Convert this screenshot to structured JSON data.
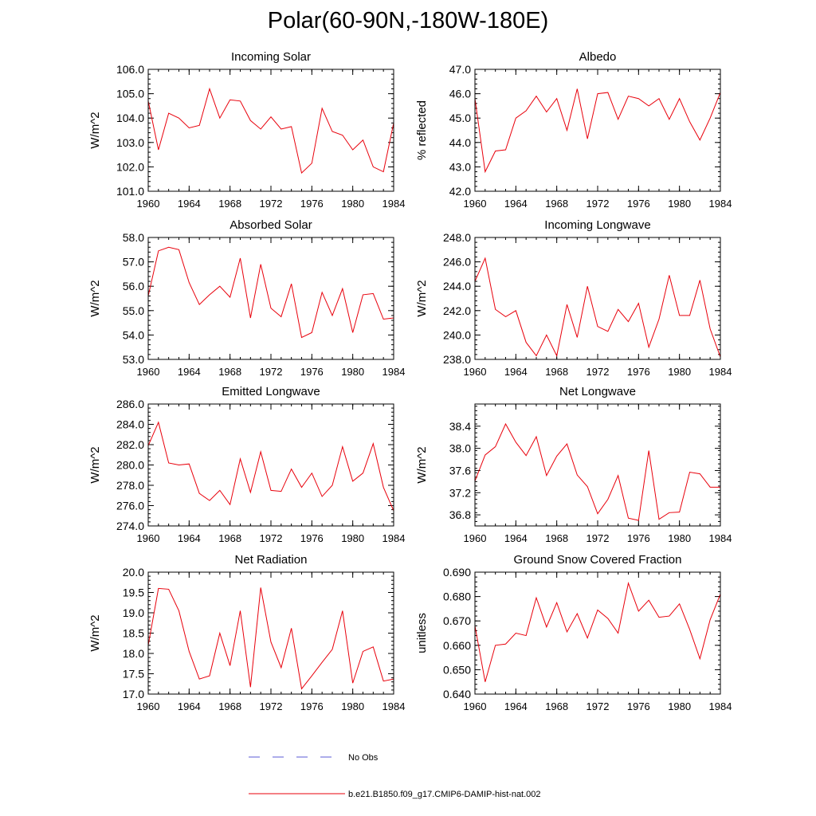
{
  "page": {
    "title": "Polar(60-90N,-180W-180E)"
  },
  "legend": {
    "entries": [
      {
        "label": "No Obs",
        "color": "#5b5bd6",
        "style": "dashed"
      },
      {
        "label": "b.e21.B1850.f09_g17.CMIP6-DAMIP-hist-nat.002",
        "color": "#e8000b",
        "style": "solid"
      }
    ]
  },
  "chart_data": [
    {
      "type": "line",
      "title": "Incoming Solar",
      "ylabel": "W/m^2",
      "xlim": [
        1960,
        1984
      ],
      "ylim": [
        101.0,
        106.0
      ],
      "xticks": [
        "1960",
        "1964",
        "1968",
        "1972",
        "1976",
        "1980",
        "1984"
      ],
      "yticks": [
        "101.0",
        "102.0",
        "103.0",
        "104.0",
        "105.0",
        "106.0"
      ],
      "series": [
        {
          "name": "b.e21.B1850.f09_g17.CMIP6-DAMIP-hist-nat.002",
          "color": "#e8000b",
          "x": [
            1960,
            1961,
            1962,
            1963,
            1964,
            1965,
            1966,
            1967,
            1968,
            1969,
            1970,
            1971,
            1972,
            1973,
            1974,
            1975,
            1976,
            1977,
            1978,
            1979,
            1980,
            1981,
            1982,
            1983,
            1984
          ],
          "y": [
            104.7,
            102.7,
            104.2,
            104.0,
            103.6,
            103.7,
            105.2,
            104.0,
            104.75,
            104.7,
            103.9,
            103.55,
            104.05,
            103.55,
            103.65,
            101.75,
            102.15,
            104.4,
            103.45,
            103.3,
            102.7,
            103.1,
            102.0,
            101.8,
            103.8
          ]
        }
      ]
    },
    {
      "type": "line",
      "title": "Albedo",
      "ylabel": "% reflected",
      "xlim": [
        1960,
        1984
      ],
      "ylim": [
        42.0,
        47.0
      ],
      "xticks": [
        "1960",
        "1964",
        "1968",
        "1972",
        "1976",
        "1980",
        "1984"
      ],
      "yticks": [
        "42.0",
        "43.0",
        "44.0",
        "45.0",
        "46.0",
        "47.0"
      ],
      "series": [
        {
          "name": "b.e21.B1850.f09_g17.CMIP6-DAMIP-hist-nat.002",
          "color": "#e8000b",
          "x": [
            1960,
            1961,
            1962,
            1963,
            1964,
            1965,
            1966,
            1967,
            1968,
            1969,
            1970,
            1971,
            1972,
            1973,
            1974,
            1975,
            1976,
            1977,
            1978,
            1979,
            1980,
            1981,
            1982,
            1983,
            1984
          ],
          "y": [
            45.8,
            42.8,
            43.65,
            43.7,
            45.0,
            45.3,
            45.9,
            45.25,
            45.8,
            44.5,
            46.2,
            44.15,
            46.0,
            46.05,
            44.95,
            45.9,
            45.8,
            45.5,
            45.8,
            44.95,
            45.8,
            44.85,
            44.1,
            45.0,
            46.05
          ]
        }
      ]
    },
    {
      "type": "line",
      "title": "Absorbed Solar",
      "ylabel": "W/m^2",
      "xlim": [
        1960,
        1984
      ],
      "ylim": [
        53.0,
        58.0
      ],
      "xticks": [
        "1960",
        "1964",
        "1968",
        "1972",
        "1976",
        "1980",
        "1984"
      ],
      "yticks": [
        "53.0",
        "54.0",
        "55.0",
        "56.0",
        "57.0",
        "58.0"
      ],
      "series": [
        {
          "name": "b.e21.B1850.f09_g17.CMIP6-DAMIP-hist-nat.002",
          "color": "#e8000b",
          "x": [
            1960,
            1961,
            1962,
            1963,
            1964,
            1965,
            1966,
            1967,
            1968,
            1969,
            1970,
            1971,
            1972,
            1973,
            1974,
            1975,
            1976,
            1977,
            1978,
            1979,
            1980,
            1981,
            1982,
            1983,
            1984
          ],
          "y": [
            55.6,
            57.45,
            57.6,
            57.5,
            56.15,
            55.25,
            55.65,
            56.0,
            55.55,
            57.15,
            54.7,
            56.9,
            55.1,
            54.75,
            56.1,
            53.9,
            54.1,
            55.75,
            54.8,
            55.9,
            54.1,
            55.65,
            55.7,
            54.65,
            54.7
          ]
        }
      ]
    },
    {
      "type": "line",
      "title": "Incoming Longwave",
      "ylabel": "W/m^2",
      "xlim": [
        1960,
        1984
      ],
      "ylim": [
        238.0,
        248.0
      ],
      "xticks": [
        "1960",
        "1964",
        "1968",
        "1972",
        "1976",
        "1980",
        "1984"
      ],
      "yticks": [
        "238.0",
        "240.0",
        "242.0",
        "244.0",
        "246.0",
        "248.0"
      ],
      "series": [
        {
          "name": "b.e21.B1850.f09_g17.CMIP6-DAMIP-hist-nat.002",
          "color": "#e8000b",
          "x": [
            1960,
            1961,
            1962,
            1963,
            1964,
            1965,
            1966,
            1967,
            1968,
            1969,
            1970,
            1971,
            1972,
            1973,
            1974,
            1975,
            1976,
            1977,
            1978,
            1979,
            1980,
            1981,
            1982,
            1983,
            1984
          ],
          "y": [
            244.4,
            246.3,
            242.1,
            241.5,
            242.0,
            239.4,
            238.3,
            240.0,
            238.3,
            242.5,
            239.8,
            244.0,
            240.7,
            240.3,
            242.1,
            241.1,
            242.6,
            239.0,
            241.3,
            244.9,
            241.6,
            241.6,
            244.5,
            240.5,
            238.2
          ]
        }
      ]
    },
    {
      "type": "line",
      "title": "Emitted Longwave",
      "ylabel": "W/m^2",
      "xlim": [
        1960,
        1984
      ],
      "ylim": [
        274.0,
        286.0
      ],
      "xticks": [
        "1960",
        "1964",
        "1968",
        "1972",
        "1976",
        "1980",
        "1984"
      ],
      "yticks": [
        "274.0",
        "276.0",
        "278.0",
        "280.0",
        "282.0",
        "284.0",
        "286.0"
      ],
      "series": [
        {
          "name": "b.e21.B1850.f09_g17.CMIP6-DAMIP-hist-nat.002",
          "color": "#e8000b",
          "x": [
            1960,
            1961,
            1962,
            1963,
            1964,
            1965,
            1966,
            1967,
            1968,
            1969,
            1970,
            1971,
            1972,
            1973,
            1974,
            1975,
            1976,
            1977,
            1978,
            1979,
            1980,
            1981,
            1982,
            1983,
            1984
          ],
          "y": [
            281.9,
            284.2,
            280.2,
            280.0,
            280.1,
            277.2,
            276.5,
            277.5,
            276.1,
            280.6,
            277.3,
            281.3,
            277.5,
            277.4,
            279.6,
            277.8,
            279.2,
            276.9,
            278.0,
            281.8,
            278.4,
            279.2,
            282.1,
            277.8,
            275.5
          ]
        }
      ]
    },
    {
      "type": "line",
      "title": "Net Longwave",
      "ylabel": "W/m^2",
      "xlim": [
        1960,
        1984
      ],
      "ylim": [
        36.6,
        38.8
      ],
      "xticks": [
        "1960",
        "1964",
        "1968",
        "1972",
        "1976",
        "1980",
        "1984"
      ],
      "yticks": [
        "36.8",
        "37.2",
        "37.6",
        "38.0",
        "38.4"
      ],
      "series": [
        {
          "name": "b.e21.B1850.f09_g17.CMIP6-DAMIP-hist-nat.002",
          "color": "#e8000b",
          "x": [
            1960,
            1961,
            1962,
            1963,
            1964,
            1965,
            1966,
            1967,
            1968,
            1969,
            1970,
            1971,
            1972,
            1973,
            1974,
            1975,
            1976,
            1977,
            1978,
            1979,
            1980,
            1981,
            1982,
            1983,
            1984
          ],
          "y": [
            37.41,
            37.88,
            38.03,
            38.44,
            38.11,
            37.87,
            38.21,
            37.51,
            37.86,
            38.08,
            37.52,
            37.31,
            36.82,
            37.08,
            37.51,
            36.74,
            36.7,
            37.96,
            36.72,
            36.84,
            36.85,
            37.57,
            37.54,
            37.3,
            37.3
          ]
        }
      ]
    },
    {
      "type": "line",
      "title": "Net Radiation",
      "ylabel": "W/m^2",
      "xlim": [
        1960,
        1984
      ],
      "ylim": [
        17.0,
        20.0
      ],
      "xticks": [
        "1960",
        "1964",
        "1968",
        "1972",
        "1976",
        "1980",
        "1984"
      ],
      "yticks": [
        "17.0",
        "17.5",
        "18.0",
        "18.5",
        "19.0",
        "19.5",
        "20.0"
      ],
      "series": [
        {
          "name": "b.e21.B1850.f09_g17.CMIP6-DAMIP-hist-nat.002",
          "color": "#e8000b",
          "x": [
            1960,
            1961,
            1962,
            1963,
            1964,
            1965,
            1966,
            1967,
            1968,
            1969,
            1970,
            1971,
            1972,
            1973,
            1974,
            1975,
            1976,
            1977,
            1978,
            1979,
            1980,
            1981,
            1982,
            1983,
            1984
          ],
          "y": [
            18.2,
            19.6,
            19.58,
            19.05,
            18.05,
            17.37,
            17.45,
            18.5,
            17.7,
            19.05,
            17.17,
            19.62,
            18.28,
            17.65,
            18.62,
            17.13,
            17.45,
            17.78,
            18.1,
            19.05,
            17.27,
            18.05,
            18.16,
            17.32,
            17.37
          ]
        }
      ]
    },
    {
      "type": "line",
      "title": "Ground Snow Covered Fraction",
      "ylabel": "unitless",
      "xlim": [
        1960,
        1984
      ],
      "ylim": [
        0.64,
        0.69
      ],
      "xticks": [
        "1960",
        "1964",
        "1968",
        "1972",
        "1976",
        "1980",
        "1984"
      ],
      "yticks": [
        "0.640",
        "0.650",
        "0.660",
        "0.670",
        "0.680",
        "0.690"
      ],
      "series": [
        {
          "name": "b.e21.B1850.f09_g17.CMIP6-DAMIP-hist-nat.002",
          "color": "#e8000b",
          "x": [
            1960,
            1961,
            1962,
            1963,
            1964,
            1965,
            1966,
            1967,
            1968,
            1969,
            1970,
            1971,
            1972,
            1973,
            1974,
            1975,
            1976,
            1977,
            1978,
            1979,
            1980,
            1981,
            1982,
            1983,
            1984
          ],
          "y": [
            0.668,
            0.645,
            0.66,
            0.6605,
            0.665,
            0.664,
            0.6795,
            0.6675,
            0.6775,
            0.6655,
            0.673,
            0.663,
            0.6745,
            0.671,
            0.665,
            0.6855,
            0.674,
            0.6785,
            0.6715,
            0.672,
            0.677,
            0.6665,
            0.6545,
            0.6705,
            0.681
          ]
        }
      ]
    }
  ]
}
